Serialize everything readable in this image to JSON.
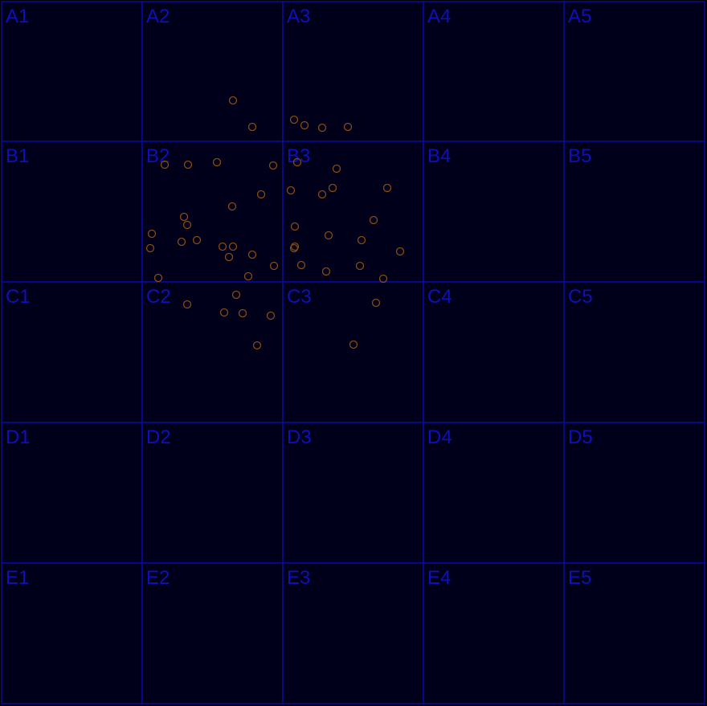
{
  "grid": {
    "rows": [
      "A",
      "B",
      "C",
      "D",
      "E"
    ],
    "cols": [
      1,
      2,
      3,
      4,
      5
    ],
    "cells": [
      [
        "A1",
        "A2",
        "A3",
        "A4",
        "A5"
      ],
      [
        "B1",
        "B2",
        "B3",
        "B4",
        "B5"
      ],
      [
        "C1",
        "C2",
        "C3",
        "C4",
        "C5"
      ],
      [
        "D1",
        "D2",
        "D3",
        "D4",
        "D5"
      ],
      [
        "E1",
        "E2",
        "E3",
        "E4",
        "E5"
      ]
    ]
  },
  "colors": {
    "background": "#00001a",
    "grid_line": "#0a0aa0",
    "label": "#0f10b8",
    "marker": "#8a4a14"
  },
  "markers_icon": "circle-marker-icon"
}
